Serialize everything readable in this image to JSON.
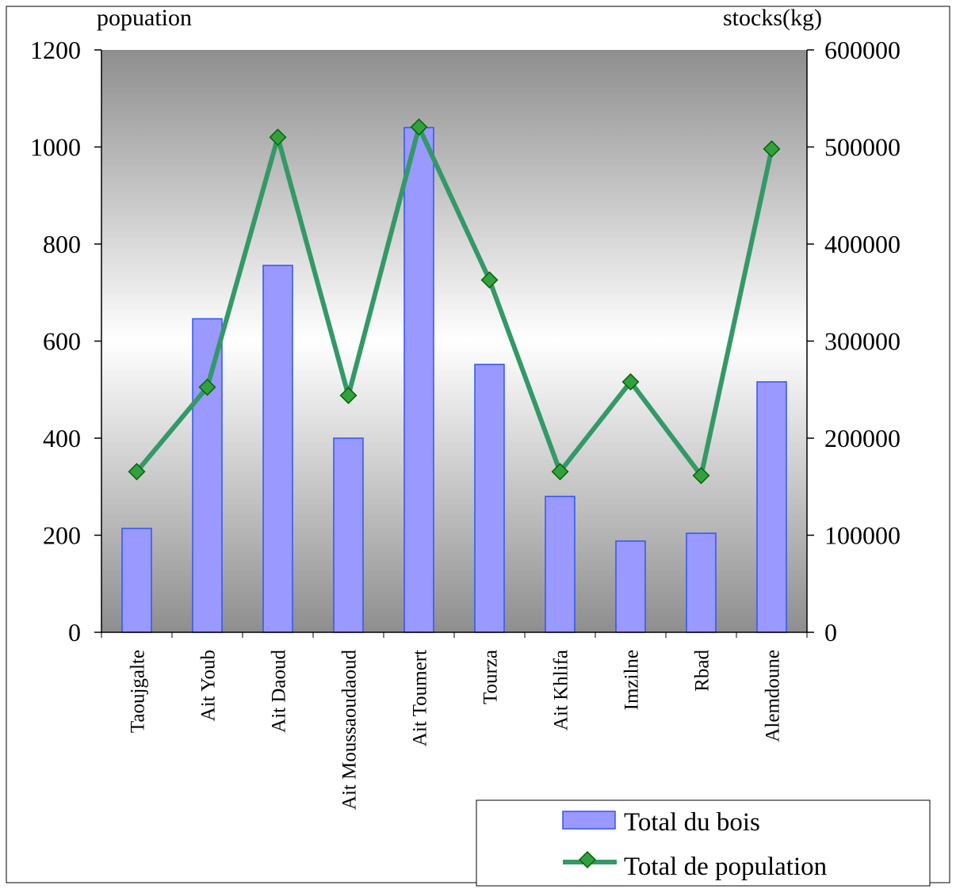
{
  "chart_data": {
    "type": "bar",
    "left_axis_title": "popuation",
    "right_axis_title": "stocks(kg)",
    "categories": [
      "Taoujgalte",
      "Ait Youb",
      "Ait Daoud",
      "Ait Moussaoudaoud",
      "Ait Toumert",
      "Tourza",
      "Ait Khlifa",
      "Imzilne",
      "Rbad",
      "Alemdoune"
    ],
    "left_axis": {
      "min": 0,
      "max": 1200,
      "step": 200,
      "ticks": [
        "0",
        "200",
        "400",
        "600",
        "800",
        "1000",
        "1200"
      ]
    },
    "right_axis": {
      "min": 0,
      "max": 600000,
      "step": 100000,
      "ticks": [
        "0",
        "100000",
        "200000",
        "300000",
        "400000",
        "500000",
        "600000"
      ]
    },
    "series": [
      {
        "name": "Total du bois",
        "type": "bar",
        "axis": "right",
        "color": "#9999ff",
        "stroke": "#3355ee",
        "values": [
          107000,
          323000,
          378000,
          200000,
          520000,
          276000,
          140000,
          94000,
          102000,
          258000
        ]
      },
      {
        "name": "Total de population",
        "type": "line",
        "axis": "left",
        "color": "#339966",
        "marker_color": "#33a040",
        "values": [
          331,
          505,
          1020,
          488,
          1041,
          726,
          331,
          516,
          323,
          996
        ]
      }
    ],
    "legend": {
      "position": "bottom-right"
    },
    "background": "vertical gradient gray-white-gray"
  }
}
